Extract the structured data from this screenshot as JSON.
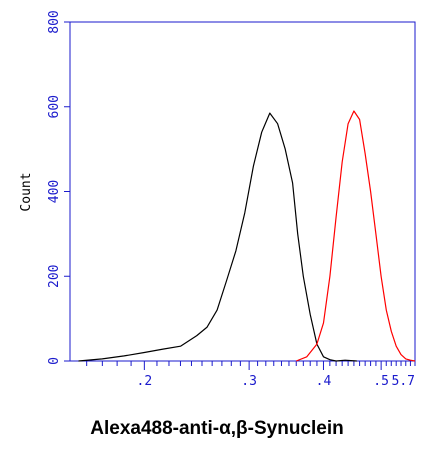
{
  "chart_data": {
    "type": "area",
    "xlabel": "Alexa488-anti-α,β-Synuclein",
    "ylabel": "Count",
    "x_scale": "log",
    "xlim": [
      1.5,
      5.7
    ],
    "ylim": [
      0,
      800
    ],
    "x_tick_labels": [
      ".2",
      ".3",
      ".4",
      ".5",
      "5.7"
    ],
    "y_tick_labels": [
      "0",
      "200",
      "400",
      "600",
      "800"
    ],
    "y_ticks": [
      0,
      200,
      400,
      600,
      800
    ],
    "grid": false,
    "legend": "none",
    "series": [
      {
        "color": "#000000",
        "x": [
          1.55,
          1.7,
          1.85,
          2.0,
          2.15,
          2.3,
          2.45,
          2.55,
          2.65,
          2.75,
          2.85,
          2.95,
          3.05,
          3.15,
          3.25,
          3.35,
          3.45,
          3.55,
          3.62,
          3.7,
          3.8,
          3.9,
          4.0,
          4.1,
          4.2,
          4.35,
          4.55
        ],
        "y": [
          0,
          5,
          12,
          20,
          28,
          35,
          60,
          80,
          120,
          190,
          260,
          350,
          460,
          540,
          585,
          560,
          500,
          420,
          300,
          200,
          110,
          40,
          10,
          3,
          0,
          2,
          0
        ]
      },
      {
        "color": "#ff0000",
        "x": [
          3.6,
          3.75,
          3.9,
          4.0,
          4.1,
          4.2,
          4.3,
          4.4,
          4.5,
          4.6,
          4.7,
          4.8,
          4.9,
          5.0,
          5.1,
          5.2,
          5.3,
          5.4,
          5.5,
          5.6,
          5.7
        ],
        "y": [
          0,
          10,
          40,
          90,
          200,
          340,
          470,
          560,
          590,
          570,
          490,
          400,
          300,
          200,
          120,
          70,
          35,
          15,
          5,
          2,
          0
        ]
      }
    ]
  }
}
